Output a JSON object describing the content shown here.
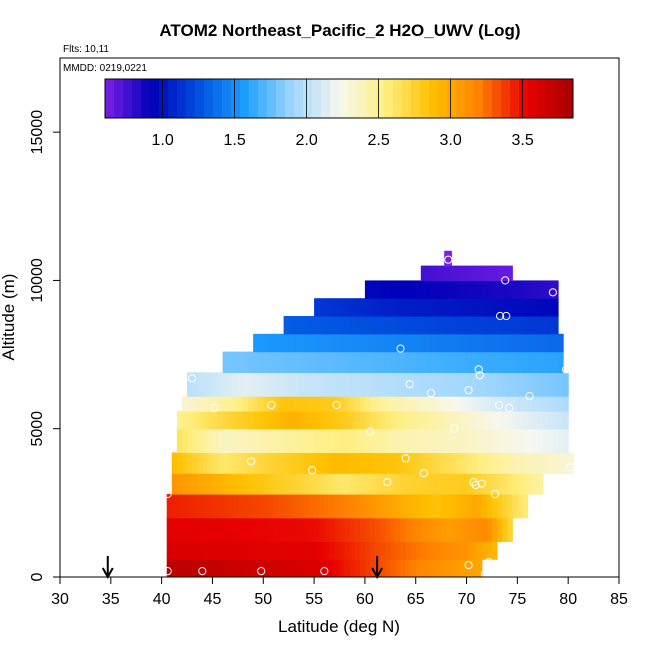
{
  "chart_data": {
    "type": "heatmap",
    "title": "ATOM2 Northeast_Pacific_2 H2O_UWV (Log)",
    "flights_label": "Flts: 10,11",
    "dates_label": "MMDD: 0219,0221",
    "xlabel": "Latitude (deg N)",
    "ylabel": "Altitude (m)",
    "xlim": [
      30,
      85
    ],
    "ylim": [
      0,
      17500
    ],
    "xticks": [
      "30",
      "35",
      "40",
      "45",
      "50",
      "55",
      "60",
      "65",
      "70",
      "75",
      "80",
      "85"
    ],
    "yticks": [
      "0",
      "5000",
      "10000",
      "15000"
    ],
    "colorbar": {
      "range": [
        0.6,
        3.85
      ],
      "ticks": [
        "1.0",
        "1.5",
        "2.0",
        "2.5",
        "3.0",
        "3.5"
      ],
      "tick_values": [
        1.0,
        1.5,
        2.0,
        2.5,
        3.0,
        3.5
      ],
      "stops": [
        "#7b1fe8",
        "#0000b8",
        "#0050e0",
        "#1ea0ff",
        "#9fd6ff",
        "#f7f7f0",
        "#ffef80",
        "#ffc000",
        "#ff8000",
        "#e80000",
        "#a80000"
      ]
    },
    "arrows_lat": [
      34.7,
      61.2
    ],
    "layers": [
      {
        "alt": [
          0,
          600
        ],
        "lat": [
          40.5,
          71.5
        ],
        "values": [
          [
            40.5,
            3.75
          ],
          [
            55,
            3.6
          ],
          [
            61,
            3.35
          ],
          [
            66,
            3.15
          ],
          [
            71.5,
            3.0
          ]
        ]
      },
      {
        "alt": [
          600,
          1200
        ],
        "lat": [
          40.5,
          73.0
        ],
        "values": [
          [
            40.5,
            3.6
          ],
          [
            55,
            3.55
          ],
          [
            61,
            3.35
          ],
          [
            66,
            3.2
          ],
          [
            70,
            3.1
          ],
          [
            73,
            2.9
          ]
        ]
      },
      {
        "alt": [
          1200,
          2000
        ],
        "lat": [
          40.5,
          74.5
        ],
        "values": [
          [
            40.5,
            3.55
          ],
          [
            55,
            3.5
          ],
          [
            62,
            3.3
          ],
          [
            68,
            3.05
          ],
          [
            72,
            3.15
          ],
          [
            74.5,
            2.7
          ]
        ]
      },
      {
        "alt": [
          2000,
          2800
        ],
        "lat": [
          40.5,
          76.0
        ],
        "values": [
          [
            40.5,
            3.45
          ],
          [
            50,
            3.35
          ],
          [
            58,
            3.2
          ],
          [
            63,
            3.0
          ],
          [
            67,
            2.85
          ],
          [
            71,
            3.0
          ],
          [
            76,
            2.55
          ]
        ]
      },
      {
        "alt": [
          2800,
          3500
        ],
        "lat": [
          41.0,
          77.5
        ],
        "values": [
          [
            41,
            3.1
          ],
          [
            47,
            2.9
          ],
          [
            53,
            2.75
          ],
          [
            58,
            2.6
          ],
          [
            64,
            2.75
          ],
          [
            70,
            2.8
          ],
          [
            77.5,
            2.45
          ]
        ]
      },
      {
        "alt": [
          3500,
          4200
        ],
        "lat": [
          41.0,
          80.5
        ],
        "values": [
          [
            41,
            2.9
          ],
          [
            46,
            2.6
          ],
          [
            51,
            2.75
          ],
          [
            57,
            2.9
          ],
          [
            63,
            2.85
          ],
          [
            70,
            2.6
          ],
          [
            75,
            2.4
          ],
          [
            80.5,
            2.3
          ]
        ]
      },
      {
        "alt": [
          4200,
          5000
        ],
        "lat": [
          41.5,
          80.0
        ],
        "values": [
          [
            41.5,
            2.65
          ],
          [
            46,
            2.35
          ],
          [
            52,
            2.45
          ],
          [
            58,
            2.55
          ],
          [
            64,
            2.4
          ],
          [
            70,
            2.35
          ],
          [
            75,
            2.25
          ],
          [
            80,
            2.15
          ]
        ]
      },
      {
        "alt": [
          5000,
          5600
        ],
        "lat": [
          41.5,
          80.0
        ],
        "values": [
          [
            41.5,
            2.5
          ],
          [
            47,
            2.75
          ],
          [
            53,
            2.95
          ],
          [
            58,
            2.8
          ],
          [
            63,
            2.55
          ],
          [
            68,
            2.4
          ],
          [
            74,
            2.2
          ],
          [
            80,
            2.05
          ]
        ]
      },
      {
        "alt": [
          5600,
          6100
        ],
        "lat": [
          42.0,
          80.0
        ],
        "values": [
          [
            42,
            2.3
          ],
          [
            47,
            2.5
          ],
          [
            52,
            2.85
          ],
          [
            57,
            2.8
          ],
          [
            62,
            2.45
          ],
          [
            67,
            2.3
          ],
          [
            73,
            2.1
          ],
          [
            80,
            1.95
          ]
        ]
      },
      {
        "alt": [
          6100,
          6900
        ],
        "lat": [
          42.5,
          80.0
        ],
        "values": [
          [
            42.5,
            2.0
          ],
          [
            48,
            2.15
          ],
          [
            54,
            2.05
          ],
          [
            60,
            2.0
          ],
          [
            66,
            1.95
          ],
          [
            72,
            1.9
          ],
          [
            80,
            1.8
          ]
        ]
      },
      {
        "alt": [
          6900,
          7600
        ],
        "lat": [
          46.0,
          79.5
        ],
        "values": [
          [
            46,
            1.8
          ],
          [
            54,
            1.75
          ],
          [
            62,
            1.7
          ],
          [
            70,
            1.65
          ],
          [
            79.5,
            1.6
          ]
        ]
      },
      {
        "alt": [
          7600,
          8200
        ],
        "lat": [
          49.0,
          79.5
        ],
        "values": [
          [
            49,
            1.55
          ],
          [
            57,
            1.5
          ],
          [
            65,
            1.45
          ],
          [
            72,
            1.4
          ],
          [
            79.5,
            1.35
          ]
        ]
      },
      {
        "alt": [
          8200,
          8800
        ],
        "lat": [
          52.0,
          79.0
        ],
        "values": [
          [
            52,
            1.3
          ],
          [
            60,
            1.25
          ],
          [
            68,
            1.2
          ],
          [
            79,
            1.15
          ]
        ]
      },
      {
        "alt": [
          8800,
          9400
        ],
        "lat": [
          55.0,
          79.0
        ],
        "values": [
          [
            55,
            1.15
          ],
          [
            63,
            1.05
          ],
          [
            71,
            1.0
          ],
          [
            79,
            0.95
          ]
        ]
      },
      {
        "alt": [
          9400,
          10000
        ],
        "lat": [
          60.0,
          79.0
        ],
        "values": [
          [
            60,
            0.95
          ],
          [
            68,
            0.9
          ],
          [
            75,
            0.85
          ],
          [
            79,
            0.8
          ]
        ]
      },
      {
        "alt": [
          10000,
          10500
        ],
        "lat": [
          65.5,
          74.5
        ],
        "values": [
          [
            65.5,
            0.75
          ],
          [
            70,
            0.7
          ],
          [
            74.5,
            0.65
          ]
        ]
      },
      {
        "alt": [
          10500,
          11000
        ],
        "lat": [
          67.8,
          68.5
        ],
        "values": [
          [
            67.8,
            0.6
          ],
          [
            68.5,
            0.6
          ]
        ]
      }
    ],
    "points": [
      [
        40.6,
        2800
      ],
      [
        40.6,
        200
      ],
      [
        43.0,
        6700
      ],
      [
        44.0,
        200
      ],
      [
        45.2,
        5700
      ],
      [
        48.8,
        3900
      ],
      [
        49.8,
        200
      ],
      [
        50.8,
        5800
      ],
      [
        54.8,
        3600
      ],
      [
        56.0,
        200
      ],
      [
        57.2,
        5800
      ],
      [
        60.5,
        4900
      ],
      [
        62.2,
        3200
      ],
      [
        63.5,
        7700
      ],
      [
        64.0,
        4000
      ],
      [
        64.4,
        6500
      ],
      [
        65.8,
        3500
      ],
      [
        66.5,
        6200
      ],
      [
        68.2,
        10700
      ],
      [
        68.8,
        5000
      ],
      [
        70.2,
        6300
      ],
      [
        70.2,
        400
      ],
      [
        70.7,
        3200
      ],
      [
        70.9,
        3100
      ],
      [
        71.2,
        7000
      ],
      [
        71.3,
        6800
      ],
      [
        71.5,
        3150
      ],
      [
        71.8,
        100
      ],
      [
        72.2,
        500
      ],
      [
        72.8,
        2800
      ],
      [
        73.2,
        5800
      ],
      [
        73.3,
        8800
      ],
      [
        73.8,
        10000
      ],
      [
        73.9,
        8800
      ],
      [
        74.2,
        5700
      ],
      [
        76.2,
        6100
      ],
      [
        78.5,
        9600
      ],
      [
        79.8,
        7000
      ],
      [
        80.2,
        3700
      ]
    ]
  }
}
